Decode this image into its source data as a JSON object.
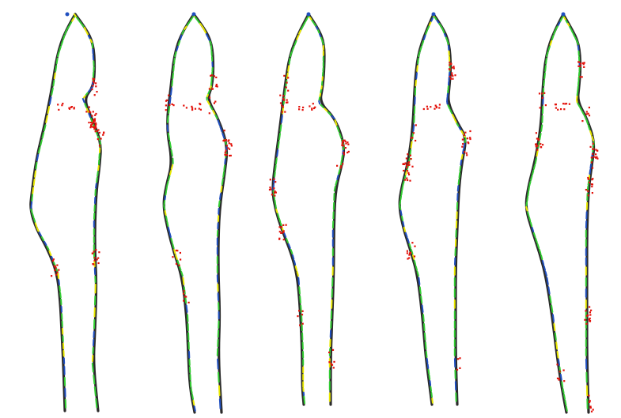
{
  "figure": {
    "panel_count": 5,
    "colors": {
      "background": "#ffffff",
      "outline_dark": "#2b2b2b",
      "outline_green": "#32cd32",
      "outline_yellow": "#e8e800",
      "outline_blue": "#1f4fbf",
      "outlier_red": "#e3120b"
    }
  }
}
